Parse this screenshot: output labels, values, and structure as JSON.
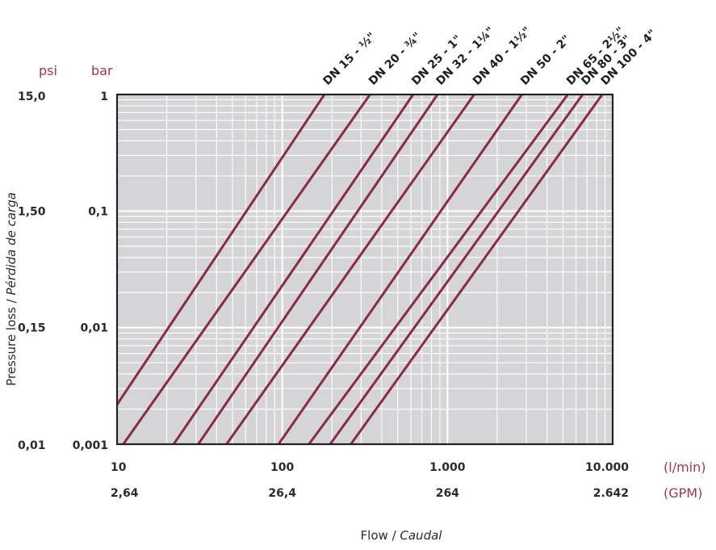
{
  "chart_data": {
    "type": "line",
    "title": "",
    "x_scale": "log",
    "y_scale": "log",
    "xlim": [
      10,
      10000
    ],
    "ylim": [
      0.001,
      1
    ],
    "grid": true,
    "colors": {
      "plot_background": "#d5d5d7",
      "grid": "#ffffff",
      "series_line": "#8b2a44",
      "unit_label": "#a0364f",
      "frame": "#222222"
    },
    "x_axis": {
      "title_main": "Flow",
      "title_separator": " / ",
      "title_alt": "Caudal",
      "primary_unit": "(l/min)",
      "secondary_unit": "(GPM)",
      "ticks": [
        {
          "value": 10,
          "label": "10",
          "label_gpm": "2,64"
        },
        {
          "value": 100,
          "label": "100",
          "label_gpm": "26,4"
        },
        {
          "value": 1000,
          "label": "1.000",
          "label_gpm": "264"
        },
        {
          "value": 10000,
          "label": "10.000",
          "label_gpm": "2.642"
        }
      ]
    },
    "y_axis": {
      "title_main": "Pressure loss",
      "title_separator": " / ",
      "title_alt": "Pérdida de carga",
      "unit_bar": "bar",
      "unit_psi": "psi",
      "ticks": [
        {
          "value": 1,
          "label_bar": "1",
          "label_psi": "15,0"
        },
        {
          "value": 0.1,
          "label_bar": "0,1",
          "label_psi": "1,50"
        },
        {
          "value": 0.01,
          "label_bar": "0,01",
          "label_psi": "0,15"
        },
        {
          "value": 0.001,
          "label_bar": "0,001",
          "label_psi": "0,01"
        }
      ]
    },
    "series": [
      {
        "name": "DN 15 - ½\"",
        "x": [
          10,
          180
        ],
        "y": [
          0.00219,
          1
        ]
      },
      {
        "name": "DN 20 - ¾\"",
        "x": [
          10.9,
          340
        ],
        "y": [
          0.001,
          1
        ]
      },
      {
        "name": "DN 25 - 1\"",
        "x": [
          22,
          620
        ],
        "y": [
          0.001,
          1
        ]
      },
      {
        "name": "DN 32 - 1¼\"",
        "x": [
          31,
          870
        ],
        "y": [
          0.001,
          1
        ]
      },
      {
        "name": "DN 40 - 1½\"",
        "x": [
          46,
          1450
        ],
        "y": [
          0.001,
          1
        ]
      },
      {
        "name": "DN 50 - 2\"",
        "x": [
          95,
          2820
        ],
        "y": [
          0.001,
          1
        ]
      },
      {
        "name": "DN 65 - 2½\"",
        "x": [
          145,
          5350
        ],
        "y": [
          0.001,
          1
        ]
      },
      {
        "name": "DN 80 - 3\"",
        "x": [
          195,
          6580
        ],
        "y": [
          0.001,
          1
        ]
      },
      {
        "name": "DN 100 - 4\"",
        "x": [
          260,
          8650
        ],
        "y": [
          0.001,
          1
        ]
      }
    ]
  }
}
